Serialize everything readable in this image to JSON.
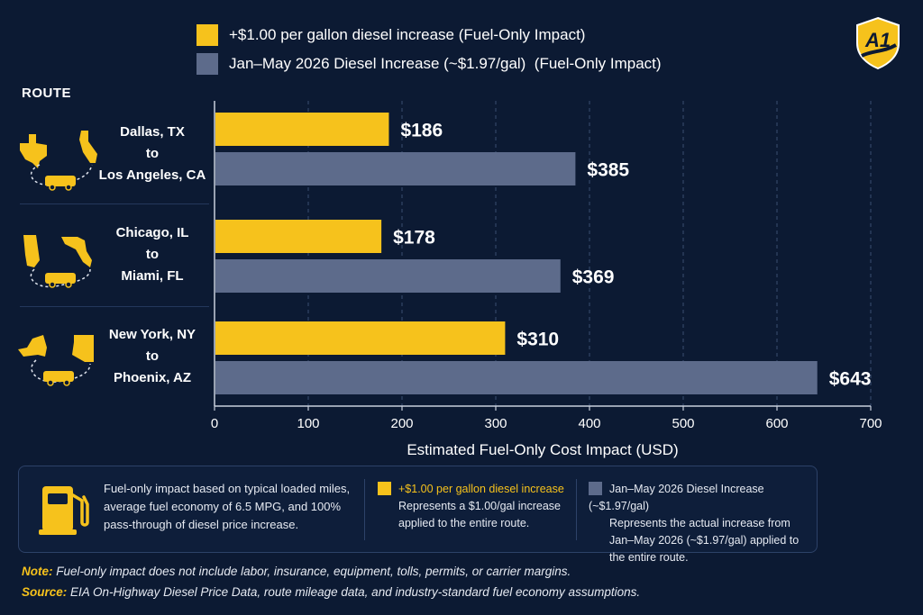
{
  "colors": {
    "background": "#0c1a33",
    "series_yellow": "#f6c21c",
    "series_gray": "#5d6b8b",
    "accent": "#f6c21c"
  },
  "logo_text": "A1",
  "route_heading": "ROUTE",
  "routes": [
    {
      "from": "Dallas, TX",
      "to_word": "to",
      "to": "Los Angeles, CA",
      "icon": "texas-california-map-icon"
    },
    {
      "from": "Chicago, IL",
      "to_word": "to",
      "to": "Miami, FL",
      "icon": "illinois-florida-map-icon"
    },
    {
      "from": "New York, NY",
      "to_word": "to",
      "to": "Phoenix, AZ",
      "icon": "newyork-arizona-map-icon"
    }
  ],
  "chart_data": {
    "type": "bar",
    "orientation": "horizontal",
    "categories": [
      "Dallas, TX to Los Angeles, CA",
      "Chicago, IL to Miami, FL",
      "New York, NY to Phoenix, AZ"
    ],
    "series": [
      {
        "name": "+$1.00 per gallon diesel increase (Fuel-Only Impact)",
        "color": "#f6c21c",
        "values": [
          186,
          178,
          310
        ],
        "labels": [
          "$186",
          "$178",
          "$310"
        ]
      },
      {
        "name": "Jan–May 2026 Diesel Increase (~$1.97/gal)  (Fuel-Only Impact)",
        "color": "#5d6b8b",
        "values": [
          385,
          369,
          643
        ],
        "labels": [
          "$385",
          "$369",
          "$643"
        ]
      }
    ],
    "xlabel": "Estimated Fuel-Only Cost Impact (USD)",
    "xlim": [
      0,
      700
    ],
    "xticks": [
      0,
      100,
      200,
      300,
      400,
      500,
      600,
      700
    ],
    "grid": "vertical dashed",
    "legend_placement": "top"
  },
  "info_box": {
    "text": "Fuel-only impact based on typical loaded miles, average fuel economy of 6.5 MPG, and 100% pass-through of diesel price increase.",
    "col1_title": "+$1.00 per gallon diesel increase",
    "col1_desc": "Represents a $1.00/gal increase applied to the entire route.",
    "col2_title": "Jan–May 2026 Diesel Increase (~$1.97/gal)",
    "col2_desc": "Represents the actual increase from Jan–May 2026 (~$1.97/gal) applied to the entire route.",
    "icon": "fuel-pump-icon"
  },
  "notes": {
    "note_label": "Note:",
    "note_text": "Fuel-only impact does not include labor, insurance, equipment, tolls, permits, or carrier margins.",
    "source_label": "Source:",
    "source_text": "EIA On-Highway Diesel Price Data, route mileage data, and industry-standard fuel economy assumptions."
  }
}
